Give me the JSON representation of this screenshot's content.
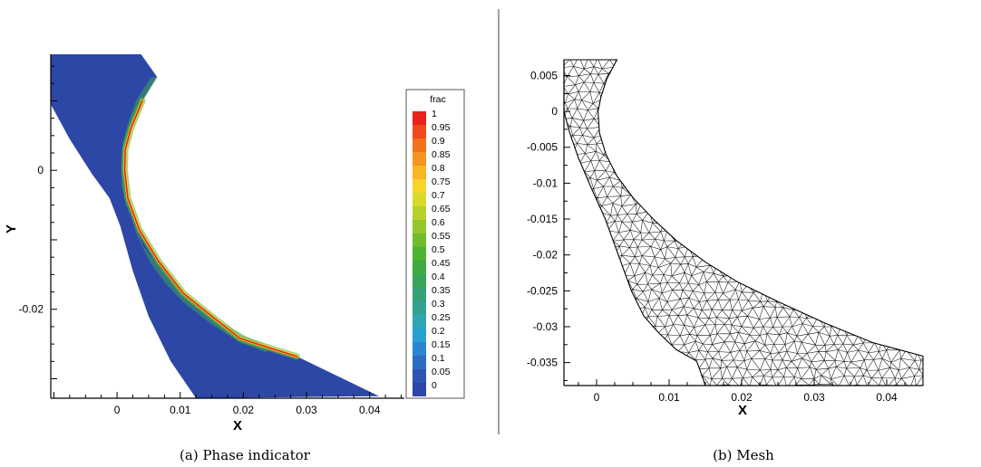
{
  "chart_data": [
    {
      "type": "heatmap",
      "caption": "(a) Phase indicator",
      "xlabel": "X",
      "ylabel": "Y",
      "xlim": [
        -0.0105,
        0.0455
      ],
      "ylim": [
        -0.0328,
        0.0167
      ],
      "x_ticks": [
        0,
        0.01,
        0.02,
        0.03,
        0.04
      ],
      "x_tick_labels": [
        "0",
        "0.01",
        "0.02",
        "0.03",
        "0.04"
      ],
      "y_ticks": [
        0,
        -0.02
      ],
      "y_tick_labels": [
        "0",
        "-0.02"
      ],
      "field_name": "frac",
      "legend": {
        "title": "frac",
        "levels": [
          "1",
          "0.95",
          "0.9",
          "0.85",
          "0.8",
          "0.75",
          "0.7",
          "0.65",
          "0.6",
          "0.55",
          "0.5",
          "0.45",
          "0.4",
          "0.35",
          "0.3",
          "0.25",
          "0.2",
          "0.15",
          "0.1",
          "0.05",
          "0"
        ],
        "colors": [
          "#e8231b",
          "#ee4a1d",
          "#f2711f",
          "#f59323",
          "#f8b526",
          "#f5d52a",
          "#d9d92c",
          "#b6d12d",
          "#93c62c",
          "#70bb2b",
          "#4fb230",
          "#3faa3f",
          "#3aa35a",
          "#36a076",
          "#33a192",
          "#2fa5b4",
          "#2a9fd2",
          "#2a86d0",
          "#2c6cc0",
          "#2c56b2",
          "#2d47a6"
        ]
      },
      "background_value": 0,
      "interface_value": 1,
      "domain_outline": [
        [
          -0.0105,
          0.0167
        ],
        [
          0.0038,
          0.0167
        ],
        [
          0.0063,
          0.0135
        ],
        [
          0.004,
          0.01
        ],
        [
          0.0022,
          0.006
        ],
        [
          0.0013,
          0.003
        ],
        [
          0.0012,
          0
        ],
        [
          0.0017,
          -0.004
        ],
        [
          0.0035,
          -0.0085
        ],
        [
          0.0065,
          -0.013
        ],
        [
          0.0105,
          -0.0177
        ],
        [
          0.015,
          -0.021
        ],
        [
          0.0195,
          -0.0242
        ],
        [
          0.025,
          -0.0258
        ],
        [
          0.0285,
          -0.0268
        ],
        [
          0.0415,
          -0.0325
        ],
        [
          0.0125,
          -0.0328
        ],
        [
          0.0085,
          -0.0275
        ],
        [
          0.005,
          -0.021
        ],
        [
          0.0025,
          -0.0145
        ],
        [
          0.0005,
          -0.008
        ],
        [
          -0.0012,
          -0.004
        ],
        [
          -0.004,
          -0.0005
        ],
        [
          -0.0075,
          0.0045
        ],
        [
          -0.0105,
          0.0095
        ]
      ],
      "interface_curve": [
        [
          0.004,
          0.01
        ],
        [
          0.0022,
          0.006
        ],
        [
          0.0013,
          0.003
        ],
        [
          0.0012,
          0
        ],
        [
          0.0017,
          -0.004
        ],
        [
          0.0035,
          -0.0085
        ],
        [
          0.0065,
          -0.013
        ],
        [
          0.0105,
          -0.0177
        ],
        [
          0.015,
          -0.021
        ],
        [
          0.0195,
          -0.0242
        ],
        [
          0.025,
          -0.0258
        ],
        [
          0.0285,
          -0.0268
        ]
      ],
      "transition_band": [
        [
          0.0053,
          0.0133
        ],
        [
          0.003,
          0.01
        ],
        [
          0.0018,
          0.007
        ],
        [
          0.0009,
          0.004
        ],
        [
          0.0007,
          0.001
        ],
        [
          0.0007,
          -0.002
        ],
        [
          0.0014,
          -0.005
        ],
        [
          0.0027,
          -0.008
        ],
        [
          0.0042,
          -0.011
        ],
        [
          0.0065,
          -0.0137
        ],
        [
          0.0095,
          -0.0168
        ],
        [
          0.013,
          -0.0196
        ],
        [
          0.0165,
          -0.0218
        ],
        [
          0.0202,
          -0.0238
        ],
        [
          0.024,
          -0.0253
        ],
        [
          0.0237,
          -0.0262
        ],
        [
          0.0195,
          -0.0248
        ],
        [
          0.015,
          -0.0222
        ],
        [
          0.0105,
          -0.019
        ],
        [
          0.0075,
          -0.0161
        ],
        [
          0.0052,
          -0.0132
        ],
        [
          0.0032,
          -0.0095
        ],
        [
          0.0017,
          -0.0055
        ],
        [
          0.0009,
          -0.0015
        ],
        [
          0.0011,
          0.0025
        ],
        [
          0.0022,
          0.006
        ],
        [
          0.0044,
          0.0105
        ],
        [
          0.0065,
          0.0135
        ]
      ]
    },
    {
      "type": "heatmap",
      "caption": "(b) Mesh",
      "xlabel": "X",
      "ylabel": "",
      "xlim": [
        -0.0045,
        0.045
      ],
      "ylim": [
        -0.0382,
        0.0072
      ],
      "x_ticks": [
        0,
        0.01,
        0.02,
        0.03,
        0.04
      ],
      "x_tick_labels": [
        "0",
        "0.01",
        "0.02",
        "0.03",
        "0.04"
      ],
      "y_ticks": [
        0.005,
        0,
        -0.005,
        -0.01,
        -0.015,
        -0.02,
        -0.025,
        -0.03,
        -0.035
      ],
      "y_tick_labels": [
        "0.005",
        "0",
        "-0.005",
        "-0.01",
        "-0.015",
        "-0.02",
        "-0.025",
        "-0.03",
        "-0.035"
      ],
      "mesh_type": "unstructured triangular",
      "domain_outline": [
        [
          -0.0045,
          0.0072
        ],
        [
          0.0028,
          0.0072
        ],
        [
          0.0014,
          0.0045
        ],
        [
          0.0006,
          0.002
        ],
        [
          0.0002,
          0
        ],
        [
          0.0004,
          -0.003
        ],
        [
          0.0013,
          -0.006
        ],
        [
          0.0028,
          -0.009
        ],
        [
          0.005,
          -0.012
        ],
        [
          0.0078,
          -0.015
        ],
        [
          0.011,
          -0.018
        ],
        [
          0.015,
          -0.021
        ],
        [
          0.0195,
          -0.0238
        ],
        [
          0.025,
          -0.0265
        ],
        [
          0.0315,
          -0.0295
        ],
        [
          0.038,
          -0.0322
        ],
        [
          0.045,
          -0.0341
        ],
        [
          0.045,
          -0.0382
        ],
        [
          0.022,
          -0.0382
        ],
        [
          0.015,
          -0.0382
        ],
        [
          0.0138,
          -0.0348
        ],
        [
          0.011,
          -0.0332
        ],
        [
          0.0085,
          -0.0308
        ],
        [
          0.0065,
          -0.0285
        ],
        [
          0.0048,
          -0.025
        ],
        [
          0.003,
          -0.02
        ],
        [
          0.0012,
          -0.015
        ],
        [
          -0.0008,
          -0.0105
        ],
        [
          -0.0025,
          -0.0065
        ],
        [
          -0.0037,
          -0.003
        ],
        [
          -0.0045,
          0
        ]
      ]
    }
  ]
}
